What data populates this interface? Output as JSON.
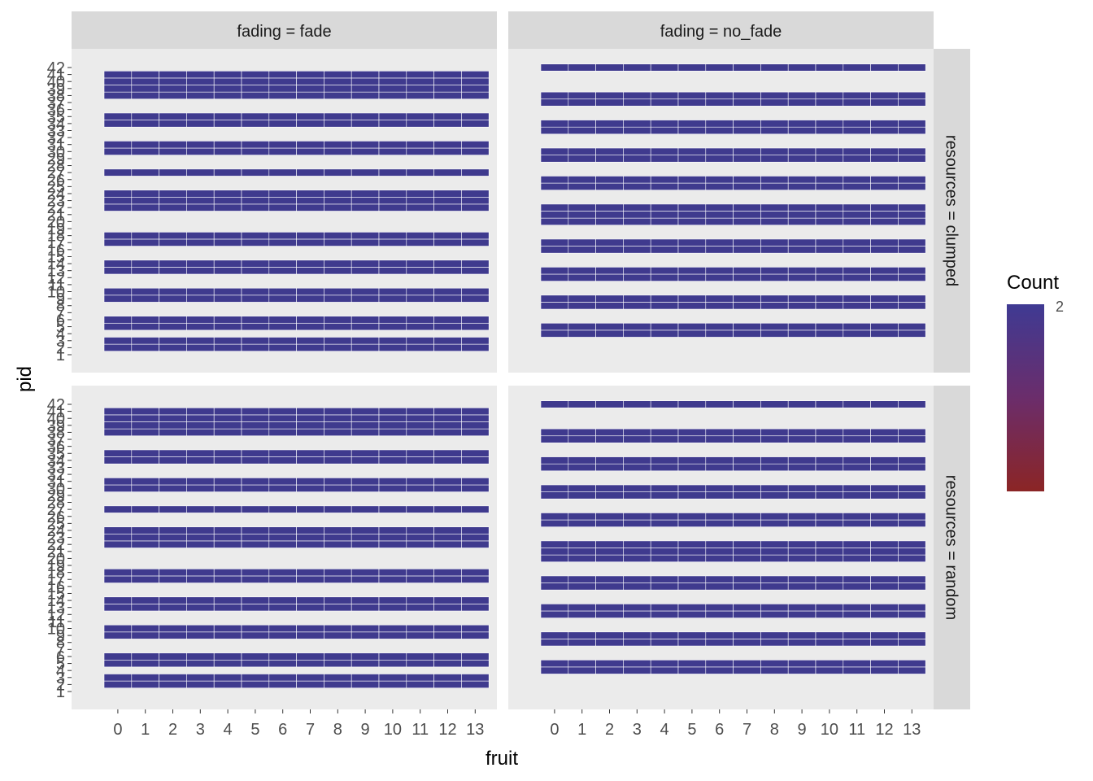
{
  "chart_data": {
    "type": "heatmap",
    "xlabel": "fruit",
    "ylabel": "pid",
    "x_ticks": [
      0,
      1,
      2,
      3,
      4,
      5,
      6,
      7,
      8,
      9,
      10,
      11,
      12,
      13
    ],
    "y_range": [
      1,
      42
    ],
    "y_ticks": [
      1,
      2,
      3,
      4,
      5,
      6,
      7,
      8,
      9,
      10,
      11,
      12,
      13,
      14,
      15,
      16,
      17,
      18,
      19,
      20,
      21,
      22,
      23,
      24,
      25,
      26,
      27,
      28,
      29,
      30,
      31,
      32,
      33,
      34,
      35,
      36,
      37,
      38,
      39,
      40,
      41,
      42
    ],
    "facet_col_labels": [
      "fading = fade",
      "fading = no_fade"
    ],
    "facet_row_labels": [
      "resources = clumped",
      "resources = random"
    ],
    "fill_value": 2,
    "colors": {
      "panel_bg": "#ebebeb",
      "strip_bg": "#d9d9d9",
      "tile": "#3f3a8e",
      "legend_high": "#3f3a93",
      "legend_low": "#8b2525"
    },
    "legend": {
      "title": "Count",
      "label": "2",
      "placement": "right"
    },
    "panels": [
      {
        "fading": "fade",
        "resources": "clumped",
        "pids": [
          2,
          3,
          5,
          6,
          9,
          10,
          13,
          14,
          17,
          18,
          22,
          23,
          24,
          27,
          30,
          31,
          34,
          35,
          38,
          39,
          40,
          41
        ]
      },
      {
        "fading": "no_fade",
        "resources": "clumped",
        "pids": [
          4,
          5,
          8,
          9,
          12,
          13,
          16,
          17,
          20,
          21,
          22,
          25,
          26,
          29,
          30,
          33,
          34,
          37,
          38,
          42
        ]
      },
      {
        "fading": "fade",
        "resources": "random",
        "pids": [
          2,
          3,
          5,
          6,
          9,
          10,
          13,
          14,
          17,
          18,
          22,
          23,
          24,
          27,
          30,
          31,
          34,
          35,
          38,
          39,
          40,
          41
        ]
      },
      {
        "fading": "no_fade",
        "resources": "random",
        "pids": [
          4,
          5,
          8,
          9,
          12,
          13,
          16,
          17,
          20,
          21,
          22,
          25,
          26,
          29,
          30,
          33,
          34,
          37,
          38,
          42
        ]
      }
    ]
  }
}
